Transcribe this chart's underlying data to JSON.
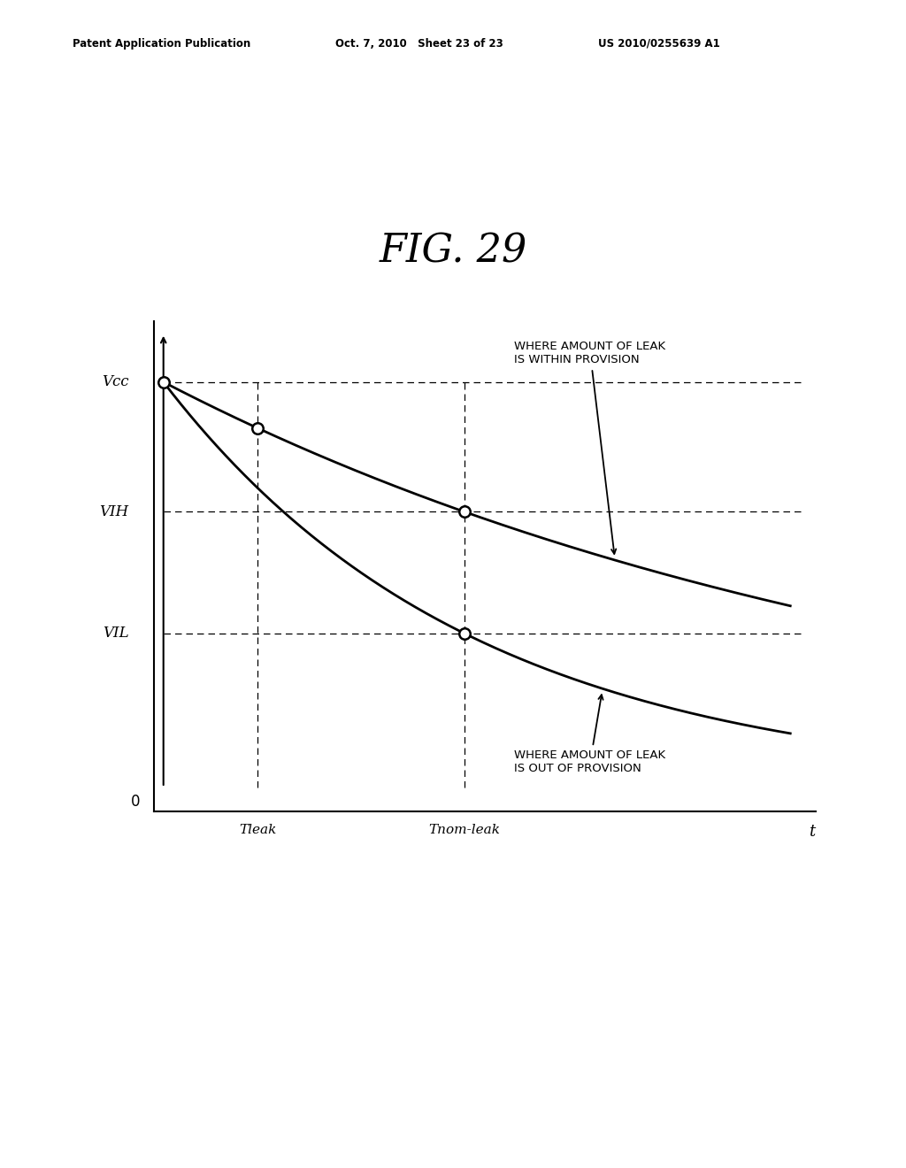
{
  "title": "FIG. 29",
  "header_left": "Patent Application Publication",
  "header_center": "Oct. 7, 2010   Sheet 23 of 23",
  "header_right": "US 2010/0255639 A1",
  "background_color": "#ffffff",
  "text_color": "#000000",
  "vcc": 1.0,
  "vih": 0.68,
  "vil": 0.38,
  "t_leak": 0.15,
  "t_nom_leak": 0.48,
  "t_max": 1.0,
  "curve1_label": "WHERE AMOUNT OF LEAK\nIS WITHIN PROVISION",
  "curve2_label": "WHERE AMOUNT OF LEAK\nIS OUT OF PROVISION",
  "xlabel": "t",
  "y0_label": "0",
  "vcc_label": "Vcc",
  "vih_label": "VIH",
  "vil_label": "VIL",
  "tleak_label": "Tleak",
  "tnomleak_label": "Tnom-leak"
}
